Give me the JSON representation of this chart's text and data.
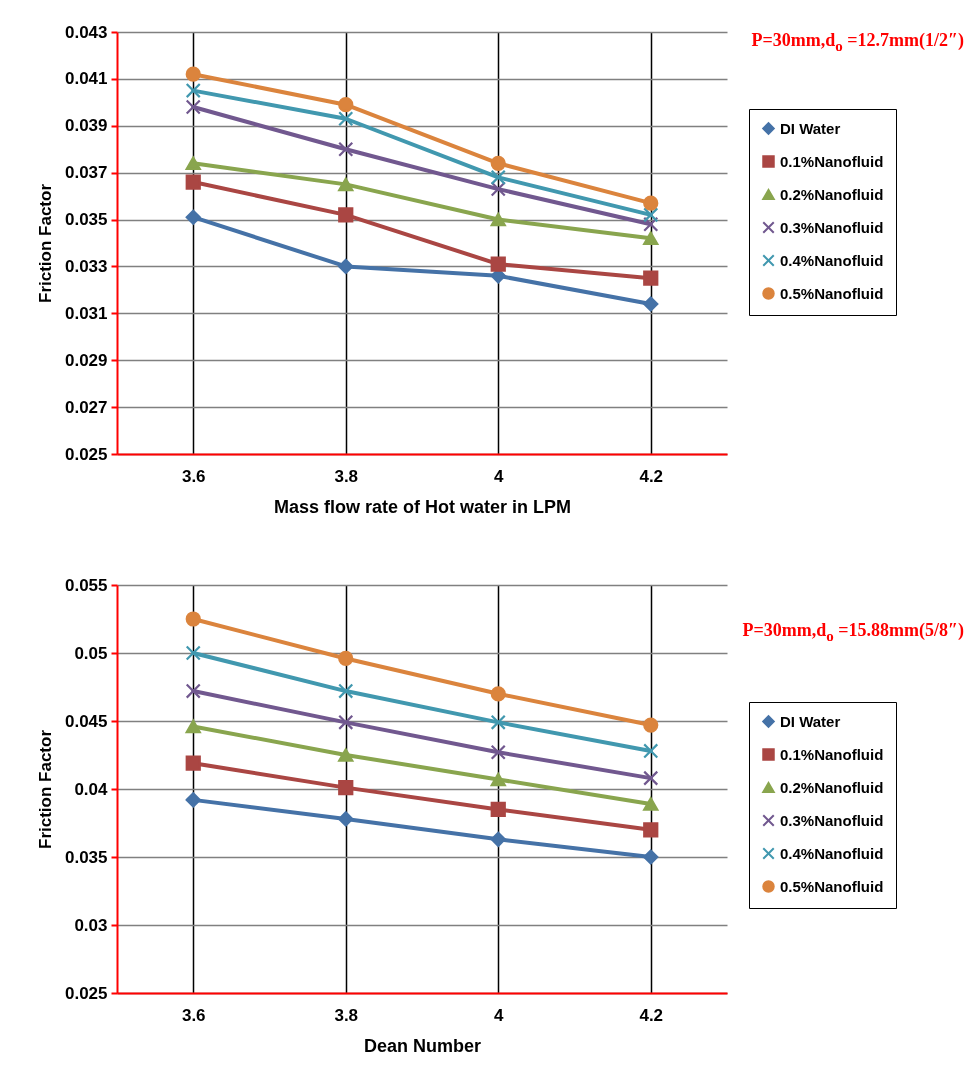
{
  "chart_data": [
    {
      "type": "line",
      "xlabel": "Mass flow rate of Hot water  in LPM",
      "ylabel": "Friction Factor",
      "categories": [
        "3.6",
        "3.8",
        "4",
        "4.2"
      ],
      "ylim": [
        0.025,
        0.043
      ],
      "yticks": [
        0.025,
        0.027,
        0.029,
        0.031,
        0.033,
        0.035,
        0.037,
        0.039,
        0.041,
        0.043
      ],
      "grid": true,
      "legend": "right",
      "annotations": [
        "P=30mm,d$_{o}$ =12.7mm(1/2″)"
      ],
      "series": [
        {
          "name": "DI Water",
          "color": "#4572a7",
          "marker": "diamond",
          "values": [
            0.0351,
            0.033,
            0.0326,
            0.0314
          ]
        },
        {
          "name": "0.1%Nanofluid",
          "color": "#aa4643",
          "marker": "square",
          "values": [
            0.0366,
            0.0352,
            0.0331,
            0.0325
          ]
        },
        {
          "name": "0.2%Nanofluid",
          "color": "#89a54e",
          "marker": "triangle",
          "values": [
            0.0374,
            0.0365,
            0.035,
            0.0342
          ]
        },
        {
          "name": "0.3%Nanofluid",
          "color": "#71588f",
          "marker": "cross",
          "values": [
            0.0398,
            0.038,
            0.0363,
            0.0348
          ]
        },
        {
          "name": "0.4%Nanofluid",
          "color": "#4198af",
          "marker": "cross",
          "values": [
            0.0405,
            0.0393,
            0.0368,
            0.0352
          ]
        },
        {
          "name": "0.5%Nanofluid",
          "color": "#db843d",
          "marker": "circle",
          "values": [
            0.0412,
            0.0399,
            0.0374,
            0.0357
          ]
        }
      ]
    },
    {
      "type": "line",
      "xlabel": "Dean Number",
      "ylabel": "Friction Factor",
      "categories": [
        "3.6",
        "3.8",
        "4",
        "4.2"
      ],
      "ylim": [
        0.025,
        0.055
      ],
      "yticks": [
        0.025,
        0.03,
        0.035,
        0.04,
        0.045,
        0.05,
        0.055
      ],
      "grid": true,
      "legend": "right",
      "annotations": [
        "P=30mm,d$_{o}$ =15.88mm(5/8″)"
      ],
      "series": [
        {
          "name": "DI Water",
          "color": "#4572a7",
          "marker": "diamond",
          "values": [
            0.0392,
            0.0378,
            0.0363,
            0.035
          ]
        },
        {
          "name": "0.1%Nanofluid",
          "color": "#aa4643",
          "marker": "square",
          "values": [
            0.0419,
            0.0401,
            0.0385,
            0.037
          ]
        },
        {
          "name": "0.2%Nanofluid",
          "color": "#89a54e",
          "marker": "triangle",
          "values": [
            0.0446,
            0.0425,
            0.0407,
            0.0389
          ]
        },
        {
          "name": "0.3%Nanofluid",
          "color": "#71588f",
          "marker": "cross",
          "values": [
            0.0472,
            0.0449,
            0.0427,
            0.0408
          ]
        },
        {
          "name": "0.4%Nanofluid",
          "color": "#4198af",
          "marker": "cross",
          "values": [
            0.05,
            0.0472,
            0.0449,
            0.0428
          ]
        },
        {
          "name": "0.5%Nanofluid",
          "color": "#db843d",
          "marker": "circle",
          "values": [
            0.0525,
            0.0496,
            0.047,
            0.0447
          ]
        }
      ]
    }
  ]
}
